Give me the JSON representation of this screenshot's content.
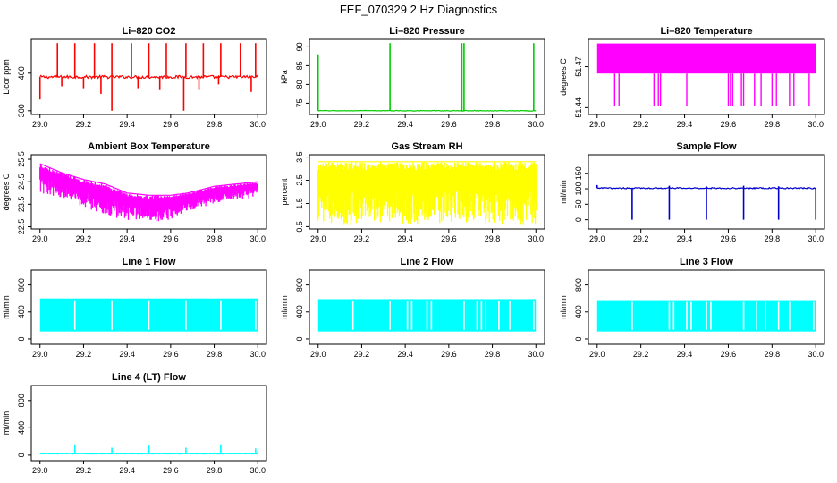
{
  "figure": {
    "title": "FEF_070329  2 Hz Diagnostics"
  },
  "chart_data": [
    {
      "type": "line",
      "title": "Li–820 CO2",
      "ylabel": "Licor ppm",
      "xlim": [
        29.0,
        30.0
      ],
      "ylim": [
        290,
        490
      ],
      "yticks": [
        300,
        400
      ],
      "yticklabels": [
        "300",
        "400"
      ],
      "xticks": [
        29.0,
        29.2,
        29.4,
        29.6,
        29.8,
        30.0
      ],
      "xticklabels": [
        "29.0",
        "29.2",
        "29.4",
        "29.6",
        "29.8",
        "30.0"
      ],
      "color": "#ff0000",
      "style": "trace",
      "series": [
        {
          "name": "CO2",
          "baseline": 390,
          "noise": 4,
          "spikes": [
            [
              29.08,
              480
            ],
            [
              29.16,
              480
            ],
            [
              29.25,
              480
            ],
            [
              29.33,
              480
            ],
            [
              29.42,
              480
            ],
            [
              29.5,
              480
            ],
            [
              29.58,
              480
            ],
            [
              29.67,
              480
            ],
            [
              29.75,
              480
            ],
            [
              29.83,
              480
            ],
            [
              29.92,
              480
            ],
            [
              29.99,
              480
            ],
            [
              29.0,
              330
            ],
            [
              29.1,
              365
            ],
            [
              29.2,
              360
            ],
            [
              29.28,
              345
            ],
            [
              29.33,
              300
            ],
            [
              29.45,
              360
            ],
            [
              29.55,
              355
            ],
            [
              29.66,
              300
            ],
            [
              29.73,
              355
            ],
            [
              29.82,
              370
            ],
            [
              29.97,
              350
            ]
          ]
        }
      ]
    },
    {
      "type": "line",
      "title": "Li–820 Pressure",
      "ylabel": "kPa",
      "xlim": [
        29.0,
        30.0
      ],
      "ylim": [
        72,
        92
      ],
      "yticks": [
        75,
        80,
        85,
        90
      ],
      "yticklabels": [
        "75",
        "80",
        "85",
        "90"
      ],
      "xticks": [
        29.0,
        29.2,
        29.4,
        29.6,
        29.8,
        30.0
      ],
      "xticklabels": [
        "29.0",
        "29.2",
        "29.4",
        "29.6",
        "29.8",
        "30.0"
      ],
      "color": "#00cc00",
      "style": "trace",
      "series": [
        {
          "name": "Pressure",
          "baseline": 73,
          "noise": 0.08,
          "spikes": [
            [
              29.0,
              88
            ],
            [
              29.33,
              91
            ],
            [
              29.66,
              91
            ],
            [
              29.67,
              91
            ],
            [
              29.99,
              91
            ]
          ]
        }
      ]
    },
    {
      "type": "line",
      "title": "Li–820 Temperature",
      "ylabel": "degrees C",
      "xlim": [
        29.0,
        30.0
      ],
      "ylim": [
        51.435,
        51.49
      ],
      "yticks": [
        51.44,
        51.47
      ],
      "yticklabels": [
        "51.44",
        "51.47"
      ],
      "xticks": [
        29.0,
        29.2,
        29.4,
        29.6,
        29.8,
        30.0
      ],
      "xticklabels": [
        "29.0",
        "29.2",
        "29.4",
        "29.6",
        "29.8",
        "30.0"
      ],
      "color": "#ff00ff",
      "style": "band",
      "series": [
        {
          "name": "Temperature",
          "levels": [
            51.465,
            51.487
          ],
          "low": 51.441,
          "dips": [
            29.08,
            29.1,
            29.26,
            29.28,
            29.29,
            29.41,
            29.6,
            29.61,
            29.62,
            29.66,
            29.67,
            29.72,
            29.75,
            29.8,
            29.82,
            29.88,
            29.9,
            29.97
          ]
        }
      ]
    },
    {
      "type": "line",
      "title": "Ambient Box Temperature",
      "ylabel": "degrees C",
      "xlim": [
        29.0,
        30.0
      ],
      "ylim": [
        22.4,
        25.7
      ],
      "yticks": [
        22.5,
        23.5,
        24.5,
        25.5
      ],
      "yticklabels": [
        "22.5",
        "23.5",
        "24.5",
        "25.5"
      ],
      "xticks": [
        29.0,
        29.2,
        29.4,
        29.6,
        29.8,
        30.0
      ],
      "xticklabels": [
        "29.0",
        "29.2",
        "29.4",
        "29.6",
        "29.8",
        "30.0"
      ],
      "color": "#ff00ff",
      "style": "noisy",
      "series": [
        {
          "name": "Box Temp",
          "x": [
            29.0,
            29.1,
            29.2,
            29.3,
            29.4,
            29.5,
            29.6,
            29.68,
            29.8,
            29.9,
            30.0
          ],
          "top": [
            25.3,
            24.9,
            24.6,
            24.4,
            24.0,
            23.9,
            23.9,
            24.0,
            24.3,
            24.4,
            24.5
          ],
          "bottom": [
            24.0,
            23.7,
            23.4,
            23.0,
            22.8,
            22.7,
            22.8,
            23.2,
            23.5,
            23.7,
            23.8
          ]
        }
      ]
    },
    {
      "type": "line",
      "title": "Gas Stream RH",
      "ylabel": "percent",
      "xlim": [
        29.0,
        30.0
      ],
      "ylim": [
        0.4,
        3.6
      ],
      "yticks": [
        0.5,
        1.5,
        2.5,
        3.5
      ],
      "yticklabels": [
        "0.5",
        "1.5",
        "2.5",
        "3.5"
      ],
      "xticks": [
        29.0,
        29.2,
        29.4,
        29.6,
        29.8,
        30.0
      ],
      "xticklabels": [
        "29.0",
        "29.2",
        "29.4",
        "29.6",
        "29.8",
        "30.0"
      ],
      "color": "#ffff00",
      "style": "noisy",
      "series": [
        {
          "name": "RH",
          "x": [
            29.0,
            30.0
          ],
          "top": [
            3.3,
            3.3
          ],
          "bottom": [
            0.6,
            0.6
          ]
        }
      ]
    },
    {
      "type": "line",
      "title": "Sample Flow",
      "ylabel": "ml/min",
      "xlim": [
        29.0,
        30.0
      ],
      "ylim": [
        -30,
        210
      ],
      "yticks": [
        0,
        50,
        100,
        150
      ],
      "yticklabels": [
        "0",
        "50",
        "100",
        "150"
      ],
      "xticks": [
        29.0,
        29.2,
        29.4,
        29.6,
        29.8,
        30.0
      ],
      "xticklabels": [
        "29.0",
        "29.2",
        "29.4",
        "29.6",
        "29.8",
        "30.0"
      ],
      "color": "#0000cc",
      "style": "trace",
      "series": [
        {
          "name": "Flow",
          "baseline": 102,
          "noise": 2,
          "spikes": [
            [
              29.0,
              112
            ],
            [
              29.16,
              0
            ],
            [
              29.33,
              0
            ],
            [
              29.33,
              110
            ],
            [
              29.5,
              0
            ],
            [
              29.5,
              108
            ],
            [
              29.67,
              0
            ],
            [
              29.67,
              110
            ],
            [
              29.83,
              0
            ],
            [
              29.83,
              108
            ],
            [
              30.0,
              0
            ]
          ]
        }
      ]
    },
    {
      "type": "line",
      "title": "Line 1 Flow",
      "ylabel": "ml/min",
      "xlim": [
        29.0,
        30.0
      ],
      "ylim": [
        -80,
        1020
      ],
      "yticks": [
        0,
        400,
        800
      ],
      "yticklabels": [
        "0",
        "400",
        "800"
      ],
      "xticks": [
        29.0,
        29.2,
        29.4,
        29.6,
        29.8,
        30.0
      ],
      "xticklabels": [
        "29.0",
        "29.2",
        "29.4",
        "29.6",
        "29.8",
        "30.0"
      ],
      "color": "#00ffff",
      "style": "block",
      "series": [
        {
          "name": "Line 1",
          "top": 600,
          "bottom": 110,
          "gaps": [
            29.16,
            29.33,
            29.5,
            29.67,
            29.83,
            29.99
          ]
        }
      ]
    },
    {
      "type": "line",
      "title": "Line 2 Flow",
      "ylabel": "ml/min",
      "xlim": [
        29.0,
        30.0
      ],
      "ylim": [
        -80,
        1020
      ],
      "yticks": [
        0,
        400,
        800
      ],
      "yticklabels": [
        "0",
        "400",
        "800"
      ],
      "xticks": [
        29.0,
        29.2,
        29.4,
        29.6,
        29.8,
        30.0
      ],
      "xticklabels": [
        "29.0",
        "29.2",
        "29.4",
        "29.6",
        "29.8",
        "30.0"
      ],
      "color": "#00ffff",
      "style": "block",
      "series": [
        {
          "name": "Line 2",
          "top": 590,
          "bottom": 110,
          "gaps": [
            29.16,
            29.33,
            29.41,
            29.43,
            29.5,
            29.52,
            29.67,
            29.73,
            29.75,
            29.77,
            29.83,
            29.88,
            29.99
          ]
        }
      ]
    },
    {
      "type": "line",
      "title": "Line 3 Flow",
      "ylabel": "ml/min",
      "xlim": [
        29.0,
        30.0
      ],
      "ylim": [
        -80,
        1020
      ],
      "yticks": [
        0,
        400,
        800
      ],
      "yticklabels": [
        "0",
        "400",
        "800"
      ],
      "xticks": [
        29.0,
        29.2,
        29.4,
        29.6,
        29.8,
        30.0
      ],
      "xticklabels": [
        "29.0",
        "29.2",
        "29.4",
        "29.6",
        "29.8",
        "30.0"
      ],
      "color": "#00ffff",
      "style": "block",
      "series": [
        {
          "name": "Line 3",
          "top": 575,
          "bottom": 110,
          "gaps": [
            29.16,
            29.33,
            29.35,
            29.41,
            29.43,
            29.5,
            29.52,
            29.67,
            29.73,
            29.77,
            29.83,
            29.88,
            29.99
          ]
        }
      ]
    },
    {
      "type": "line",
      "title": "Line 4 (LT) Flow",
      "ylabel": "ml/min",
      "xlim": [
        29.0,
        30.0
      ],
      "ylim": [
        -80,
        1020
      ],
      "yticks": [
        0,
        400,
        800
      ],
      "yticklabels": [
        "0",
        "400",
        "800"
      ],
      "xticks": [
        29.0,
        29.2,
        29.4,
        29.6,
        29.8,
        30.0
      ],
      "xticklabels": [
        "29.0",
        "29.2",
        "29.4",
        "29.6",
        "29.8",
        "30.0"
      ],
      "color": "#00ffff",
      "style": "trace",
      "series": [
        {
          "name": "Line 4",
          "baseline": 20,
          "noise": 3,
          "spikes": [
            [
              29.16,
              160
            ],
            [
              29.33,
              110
            ],
            [
              29.5,
              150
            ],
            [
              29.67,
              110
            ],
            [
              29.83,
              160
            ],
            [
              29.99,
              100
            ]
          ]
        }
      ]
    }
  ]
}
